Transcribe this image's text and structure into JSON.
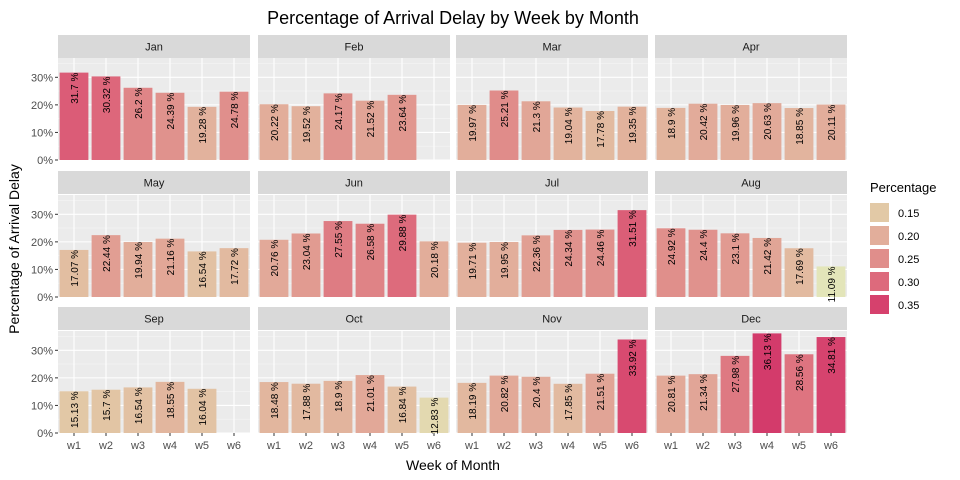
{
  "chart_data": {
    "type": "bar",
    "title": "Percentage of Arrival Delay by Week by Month",
    "xlabel": "Week of Month",
    "ylabel": "Percentage of Arrival Delay",
    "categories": [
      "w1",
      "w2",
      "w3",
      "w4",
      "w5",
      "w6"
    ],
    "y_ticks": [
      "0%",
      "10%",
      "20%",
      "30%"
    ],
    "ylim": [
      0,
      0.37
    ],
    "grid": true,
    "facets": [
      {
        "name": "Jan",
        "values": [
          31.7,
          30.32,
          26.2,
          24.39,
          19.28,
          24.78
        ],
        "labels": [
          "31.7 %",
          "30.32 %",
          "26.2 %",
          "24.39 %",
          "19.28 %",
          "24.78 %"
        ]
      },
      {
        "name": "Feb",
        "values": [
          20.22,
          19.52,
          24.17,
          21.52,
          23.64,
          null
        ],
        "labels": [
          "20.22 %",
          "19.52 %",
          "24.17 %",
          "21.52 %",
          "23.64 %",
          ""
        ]
      },
      {
        "name": "Mar",
        "values": [
          19.97,
          25.21,
          21.3,
          19.04,
          17.78,
          19.35
        ],
        "labels": [
          "19.97 %",
          "25.21 %",
          "21.3 %",
          "19.04 %",
          "17.78 %",
          "19.35 %"
        ]
      },
      {
        "name": "Apr",
        "values": [
          18.9,
          20.42,
          19.96,
          20.63,
          18.85,
          20.11
        ],
        "labels": [
          "18.9 %",
          "20.42 %",
          "19.96 %",
          "20.63 %",
          "18.85 %",
          "20.11 %"
        ]
      },
      {
        "name": "May",
        "values": [
          17.07,
          22.44,
          19.94,
          21.16,
          16.54,
          17.72
        ],
        "labels": [
          "17.07 %",
          "22.44 %",
          "19.94 %",
          "21.16 %",
          "16.54 %",
          "17.72 %"
        ]
      },
      {
        "name": "Jun",
        "values": [
          20.76,
          23.04,
          27.55,
          26.58,
          29.88,
          20.18
        ],
        "labels": [
          "20.76 %",
          "23.04 %",
          "27.55 %",
          "26.58 %",
          "29.88 %",
          "20.18 %"
        ]
      },
      {
        "name": "Jul",
        "values": [
          19.71,
          19.95,
          22.36,
          24.34,
          24.46,
          31.51
        ],
        "labels": [
          "19.71 %",
          "19.95 %",
          "22.36 %",
          "24.34 %",
          "24.46 %",
          "31.51 %"
        ]
      },
      {
        "name": "Aug",
        "values": [
          24.92,
          24.4,
          23.1,
          21.42,
          17.69,
          11.09
        ],
        "labels": [
          "24.92 %",
          "24.4 %",
          "23.1 %",
          "21.42 %",
          "17.69 %",
          "11.09 %"
        ]
      },
      {
        "name": "Sep",
        "values": [
          15.13,
          15.7,
          16.54,
          18.55,
          16.04,
          null
        ],
        "labels": [
          "15.13 %",
          "15.7 %",
          "16.54 %",
          "18.55 %",
          "16.04 %",
          ""
        ]
      },
      {
        "name": "Oct",
        "values": [
          18.48,
          17.88,
          18.9,
          21.01,
          16.84,
          12.83
        ],
        "labels": [
          "18.48 %",
          "17.88 %",
          "18.9 %",
          "21.01 %",
          "16.84 %",
          "12.83 %"
        ]
      },
      {
        "name": "Nov",
        "values": [
          18.19,
          20.82,
          20.4,
          17.85,
          21.51,
          33.92
        ],
        "labels": [
          "18.19 %",
          "20.82 %",
          "20.4 %",
          "17.85 %",
          "21.51 %",
          "33.92 %"
        ]
      },
      {
        "name": "Dec",
        "values": [
          20.81,
          21.34,
          27.98,
          36.13,
          28.56,
          34.81
        ],
        "labels": [
          "20.81 %",
          "21.34 %",
          "27.98 %",
          "36.13 %",
          "28.56 %",
          "34.81 %"
        ]
      }
    ],
    "legend": {
      "title": "Percentage",
      "placement": "right",
      "items": [
        {
          "label": "0.15",
          "value": 0.15,
          "color": "#e2c9a6"
        },
        {
          "label": "0.20",
          "value": 0.2,
          "color": "#e2ae9b"
        },
        {
          "label": "0.25",
          "value": 0.25,
          "color": "#e08e8b"
        },
        {
          "label": "0.30",
          "value": 0.3,
          "color": "#dd6a7c"
        },
        {
          "label": "0.35",
          "value": 0.35,
          "color": "#d6416d"
        }
      ]
    },
    "color_scale": {
      "low_value": 0.11,
      "low_color": "#e3e6b9",
      "high_value": 0.36,
      "high_color": "#d33b6b"
    },
    "panel_background": "#ebebeb",
    "strip_background": "#d9d9d9"
  }
}
